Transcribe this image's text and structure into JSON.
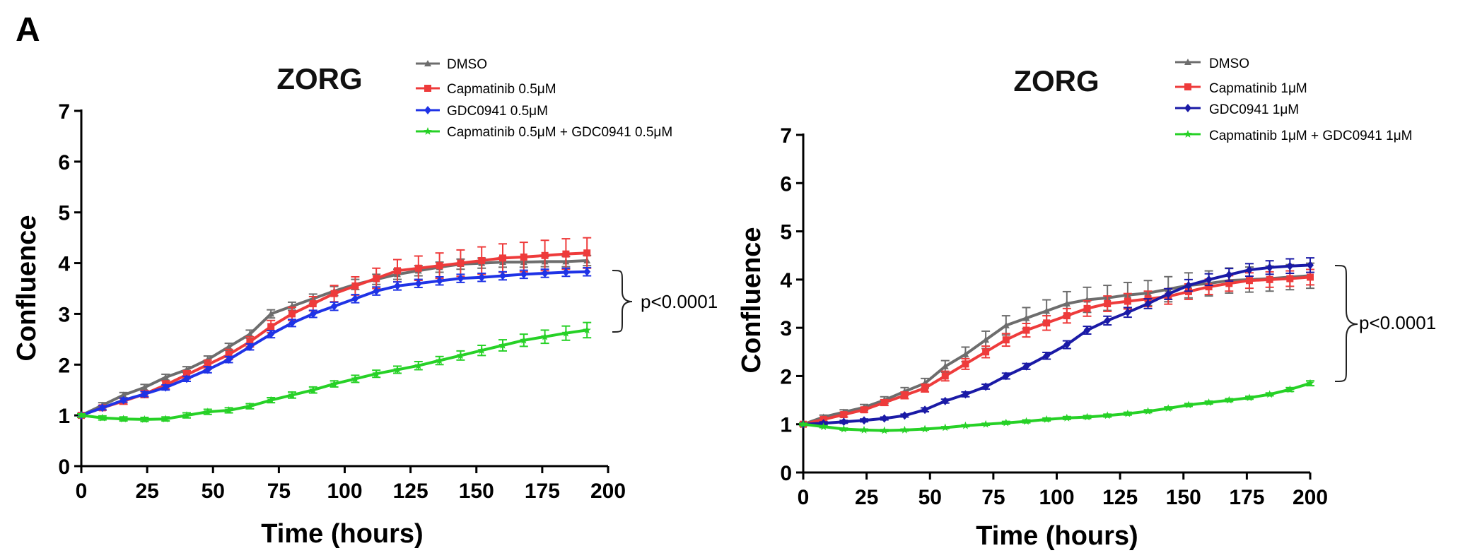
{
  "figure": {
    "panel_label": "A"
  },
  "chart_data": [
    {
      "type": "line",
      "title": "ZORG",
      "xlabel": "Time (hours)",
      "ylabel": "Confluence",
      "xlim": [
        0,
        200
      ],
      "ylim": [
        0,
        7
      ],
      "xticks": [
        "0",
        "25",
        "50",
        "75",
        "100",
        "125",
        "150",
        "175",
        "200"
      ],
      "yticks": [
        "0",
        "1",
        "2",
        "3",
        "4",
        "5",
        "6",
        "7"
      ],
      "grid": false,
      "legend": "top",
      "annotation": "p<0.0001",
      "series": [
        {
          "name": "DMSO",
          "color": "#6d6d6d",
          "marker": "triangle",
          "x": [
            0,
            8,
            16,
            24,
            32,
            40,
            48,
            56,
            64,
            72,
            80,
            88,
            96,
            104,
            112,
            120,
            128,
            136,
            144,
            152,
            160,
            168,
            176,
            184,
            192
          ],
          "y": [
            1.0,
            1.2,
            1.4,
            1.55,
            1.75,
            1.9,
            2.1,
            2.35,
            2.6,
            3.0,
            3.15,
            3.3,
            3.45,
            3.58,
            3.68,
            3.78,
            3.85,
            3.92,
            3.98,
            4.0,
            4.02,
            4.02,
            4.03,
            4.03,
            4.05
          ],
          "err": [
            0.04,
            0.05,
            0.05,
            0.06,
            0.06,
            0.06,
            0.07,
            0.07,
            0.08,
            0.08,
            0.08,
            0.09,
            0.09,
            0.1,
            0.1,
            0.1,
            0.1,
            0.1,
            0.1,
            0.1,
            0.1,
            0.1,
            0.1,
            0.1,
            0.1
          ]
        },
        {
          "name": "Capmatinib 0.5μM",
          "color": "#ee3b3b",
          "marker": "square",
          "x": [
            0,
            8,
            16,
            24,
            32,
            40,
            48,
            56,
            64,
            72,
            80,
            88,
            96,
            104,
            112,
            120,
            128,
            136,
            144,
            152,
            160,
            168,
            176,
            184,
            192
          ],
          "y": [
            1.0,
            1.15,
            1.28,
            1.42,
            1.6,
            1.8,
            2.0,
            2.2,
            2.45,
            2.75,
            3.0,
            3.2,
            3.4,
            3.55,
            3.7,
            3.85,
            3.9,
            3.95,
            4.0,
            4.05,
            4.1,
            4.12,
            4.15,
            4.18,
            4.2
          ],
          "err": [
            0.03,
            0.05,
            0.06,
            0.07,
            0.08,
            0.08,
            0.09,
            0.1,
            0.1,
            0.12,
            0.13,
            0.14,
            0.16,
            0.18,
            0.2,
            0.22,
            0.24,
            0.25,
            0.26,
            0.27,
            0.28,
            0.29,
            0.3,
            0.3,
            0.3
          ]
        },
        {
          "name": "GDC0941 0.5μM",
          "color": "#1f33e6",
          "marker": "diamond",
          "x": [
            0,
            8,
            16,
            24,
            32,
            40,
            48,
            56,
            64,
            72,
            80,
            88,
            96,
            104,
            112,
            120,
            128,
            136,
            144,
            152,
            160,
            168,
            176,
            184,
            192
          ],
          "y": [
            1.0,
            1.15,
            1.3,
            1.42,
            1.55,
            1.72,
            1.9,
            2.1,
            2.35,
            2.6,
            2.82,
            3.0,
            3.15,
            3.3,
            3.45,
            3.55,
            3.6,
            3.65,
            3.7,
            3.72,
            3.75,
            3.78,
            3.8,
            3.82,
            3.83
          ],
          "err": [
            0.03,
            0.04,
            0.04,
            0.05,
            0.05,
            0.05,
            0.06,
            0.06,
            0.06,
            0.07,
            0.07,
            0.07,
            0.08,
            0.08,
            0.08,
            0.08,
            0.08,
            0.08,
            0.08,
            0.08,
            0.08,
            0.08,
            0.08,
            0.08,
            0.08
          ]
        },
        {
          "name": "Capmatinib 0.5μM + GDC0941 0.5μM",
          "color": "#26d126",
          "marker": "star",
          "x": [
            0,
            8,
            16,
            24,
            32,
            40,
            48,
            56,
            64,
            72,
            80,
            88,
            96,
            104,
            112,
            120,
            128,
            136,
            144,
            152,
            160,
            168,
            176,
            184,
            192
          ],
          "y": [
            1.0,
            0.95,
            0.93,
            0.92,
            0.93,
            1.0,
            1.07,
            1.1,
            1.18,
            1.3,
            1.4,
            1.5,
            1.62,
            1.72,
            1.82,
            1.9,
            1.98,
            2.08,
            2.18,
            2.28,
            2.38,
            2.48,
            2.55,
            2.62,
            2.68
          ],
          "err": [
            0.03,
            0.04,
            0.04,
            0.04,
            0.04,
            0.05,
            0.05,
            0.05,
            0.05,
            0.05,
            0.06,
            0.06,
            0.06,
            0.07,
            0.07,
            0.07,
            0.08,
            0.08,
            0.09,
            0.1,
            0.11,
            0.12,
            0.13,
            0.14,
            0.15
          ]
        }
      ]
    },
    {
      "type": "line",
      "title": "ZORG",
      "xlabel": "Time (hours)",
      "ylabel": "Confluence",
      "xlim": [
        0,
        200
      ],
      "ylim": [
        0,
        7
      ],
      "xticks": [
        "0",
        "25",
        "50",
        "75",
        "100",
        "125",
        "150",
        "175",
        "200"
      ],
      "yticks": [
        "0",
        "1",
        "2",
        "3",
        "4",
        "5",
        "6",
        "7"
      ],
      "grid": false,
      "legend": "top-right",
      "annotation": "p<0.0001",
      "series": [
        {
          "name": "DMSO",
          "color": "#6d6d6d",
          "marker": "triangle",
          "x": [
            0,
            8,
            16,
            24,
            32,
            40,
            48,
            56,
            64,
            72,
            80,
            88,
            96,
            104,
            112,
            120,
            128,
            136,
            144,
            152,
            160,
            168,
            176,
            184,
            192,
            200
          ],
          "y": [
            1.0,
            1.15,
            1.25,
            1.35,
            1.5,
            1.68,
            1.85,
            2.2,
            2.45,
            2.75,
            3.05,
            3.2,
            3.35,
            3.5,
            3.58,
            3.62,
            3.68,
            3.72,
            3.8,
            3.88,
            3.92,
            3.98,
            4.0,
            4.02,
            4.05,
            4.08
          ],
          "err": [
            0.03,
            0.04,
            0.05,
            0.06,
            0.07,
            0.08,
            0.1,
            0.12,
            0.15,
            0.18,
            0.2,
            0.22,
            0.23,
            0.25,
            0.26,
            0.26,
            0.26,
            0.26,
            0.26,
            0.26,
            0.26,
            0.26,
            0.26,
            0.26,
            0.26,
            0.26
          ]
        },
        {
          "name": "Capmatinib 1μM",
          "color": "#ee3b3b",
          "marker": "square",
          "x": [
            0,
            8,
            16,
            24,
            32,
            40,
            48,
            56,
            64,
            72,
            80,
            88,
            96,
            104,
            112,
            120,
            128,
            136,
            144,
            152,
            160,
            168,
            176,
            184,
            192,
            200
          ],
          "y": [
            1.0,
            1.1,
            1.2,
            1.3,
            1.45,
            1.6,
            1.75,
            2.0,
            2.25,
            2.5,
            2.75,
            2.95,
            3.1,
            3.25,
            3.4,
            3.5,
            3.55,
            3.6,
            3.65,
            3.75,
            3.85,
            3.92,
            3.98,
            4.0,
            4.02,
            4.05
          ],
          "err": [
            0.03,
            0.04,
            0.05,
            0.05,
            0.06,
            0.07,
            0.08,
            0.1,
            0.11,
            0.12,
            0.13,
            0.14,
            0.15,
            0.15,
            0.16,
            0.16,
            0.16,
            0.16,
            0.16,
            0.16,
            0.16,
            0.16,
            0.16,
            0.16,
            0.16,
            0.16
          ]
        },
        {
          "name": "GDC0941 1μM",
          "color": "#1a1aa6",
          "marker": "diamond",
          "x": [
            0,
            8,
            16,
            24,
            32,
            40,
            48,
            56,
            64,
            72,
            80,
            88,
            96,
            104,
            112,
            120,
            128,
            136,
            144,
            152,
            160,
            168,
            176,
            184,
            192,
            200
          ],
          "y": [
            1.0,
            1.02,
            1.05,
            1.08,
            1.12,
            1.18,
            1.3,
            1.48,
            1.62,
            1.78,
            2.0,
            2.2,
            2.42,
            2.65,
            2.95,
            3.15,
            3.32,
            3.5,
            3.7,
            3.88,
            4.0,
            4.1,
            4.2,
            4.25,
            4.28,
            4.3
          ],
          "err": [
            0.02,
            0.03,
            0.03,
            0.03,
            0.03,
            0.03,
            0.04,
            0.04,
            0.05,
            0.05,
            0.06,
            0.06,
            0.07,
            0.08,
            0.08,
            0.09,
            0.1,
            0.1,
            0.11,
            0.12,
            0.12,
            0.13,
            0.13,
            0.14,
            0.15,
            0.15
          ]
        },
        {
          "name": "Capmatinib 1μM + GDC0941 1μM",
          "color": "#26d126",
          "marker": "star",
          "x": [
            0,
            8,
            16,
            24,
            32,
            40,
            48,
            56,
            64,
            72,
            80,
            88,
            96,
            104,
            112,
            120,
            128,
            136,
            144,
            152,
            160,
            168,
            176,
            184,
            192,
            200
          ],
          "y": [
            1.0,
            0.95,
            0.9,
            0.88,
            0.87,
            0.88,
            0.9,
            0.93,
            0.97,
            1.0,
            1.03,
            1.06,
            1.1,
            1.13,
            1.15,
            1.18,
            1.22,
            1.27,
            1.33,
            1.4,
            1.45,
            1.5,
            1.55,
            1.62,
            1.72,
            1.85
          ],
          "err": [
            0.02,
            0.02,
            0.02,
            0.02,
            0.02,
            0.02,
            0.02,
            0.02,
            0.02,
            0.02,
            0.03,
            0.03,
            0.03,
            0.03,
            0.03,
            0.03,
            0.03,
            0.03,
            0.03,
            0.03,
            0.03,
            0.03,
            0.03,
            0.03,
            0.04,
            0.05
          ]
        }
      ]
    }
  ]
}
